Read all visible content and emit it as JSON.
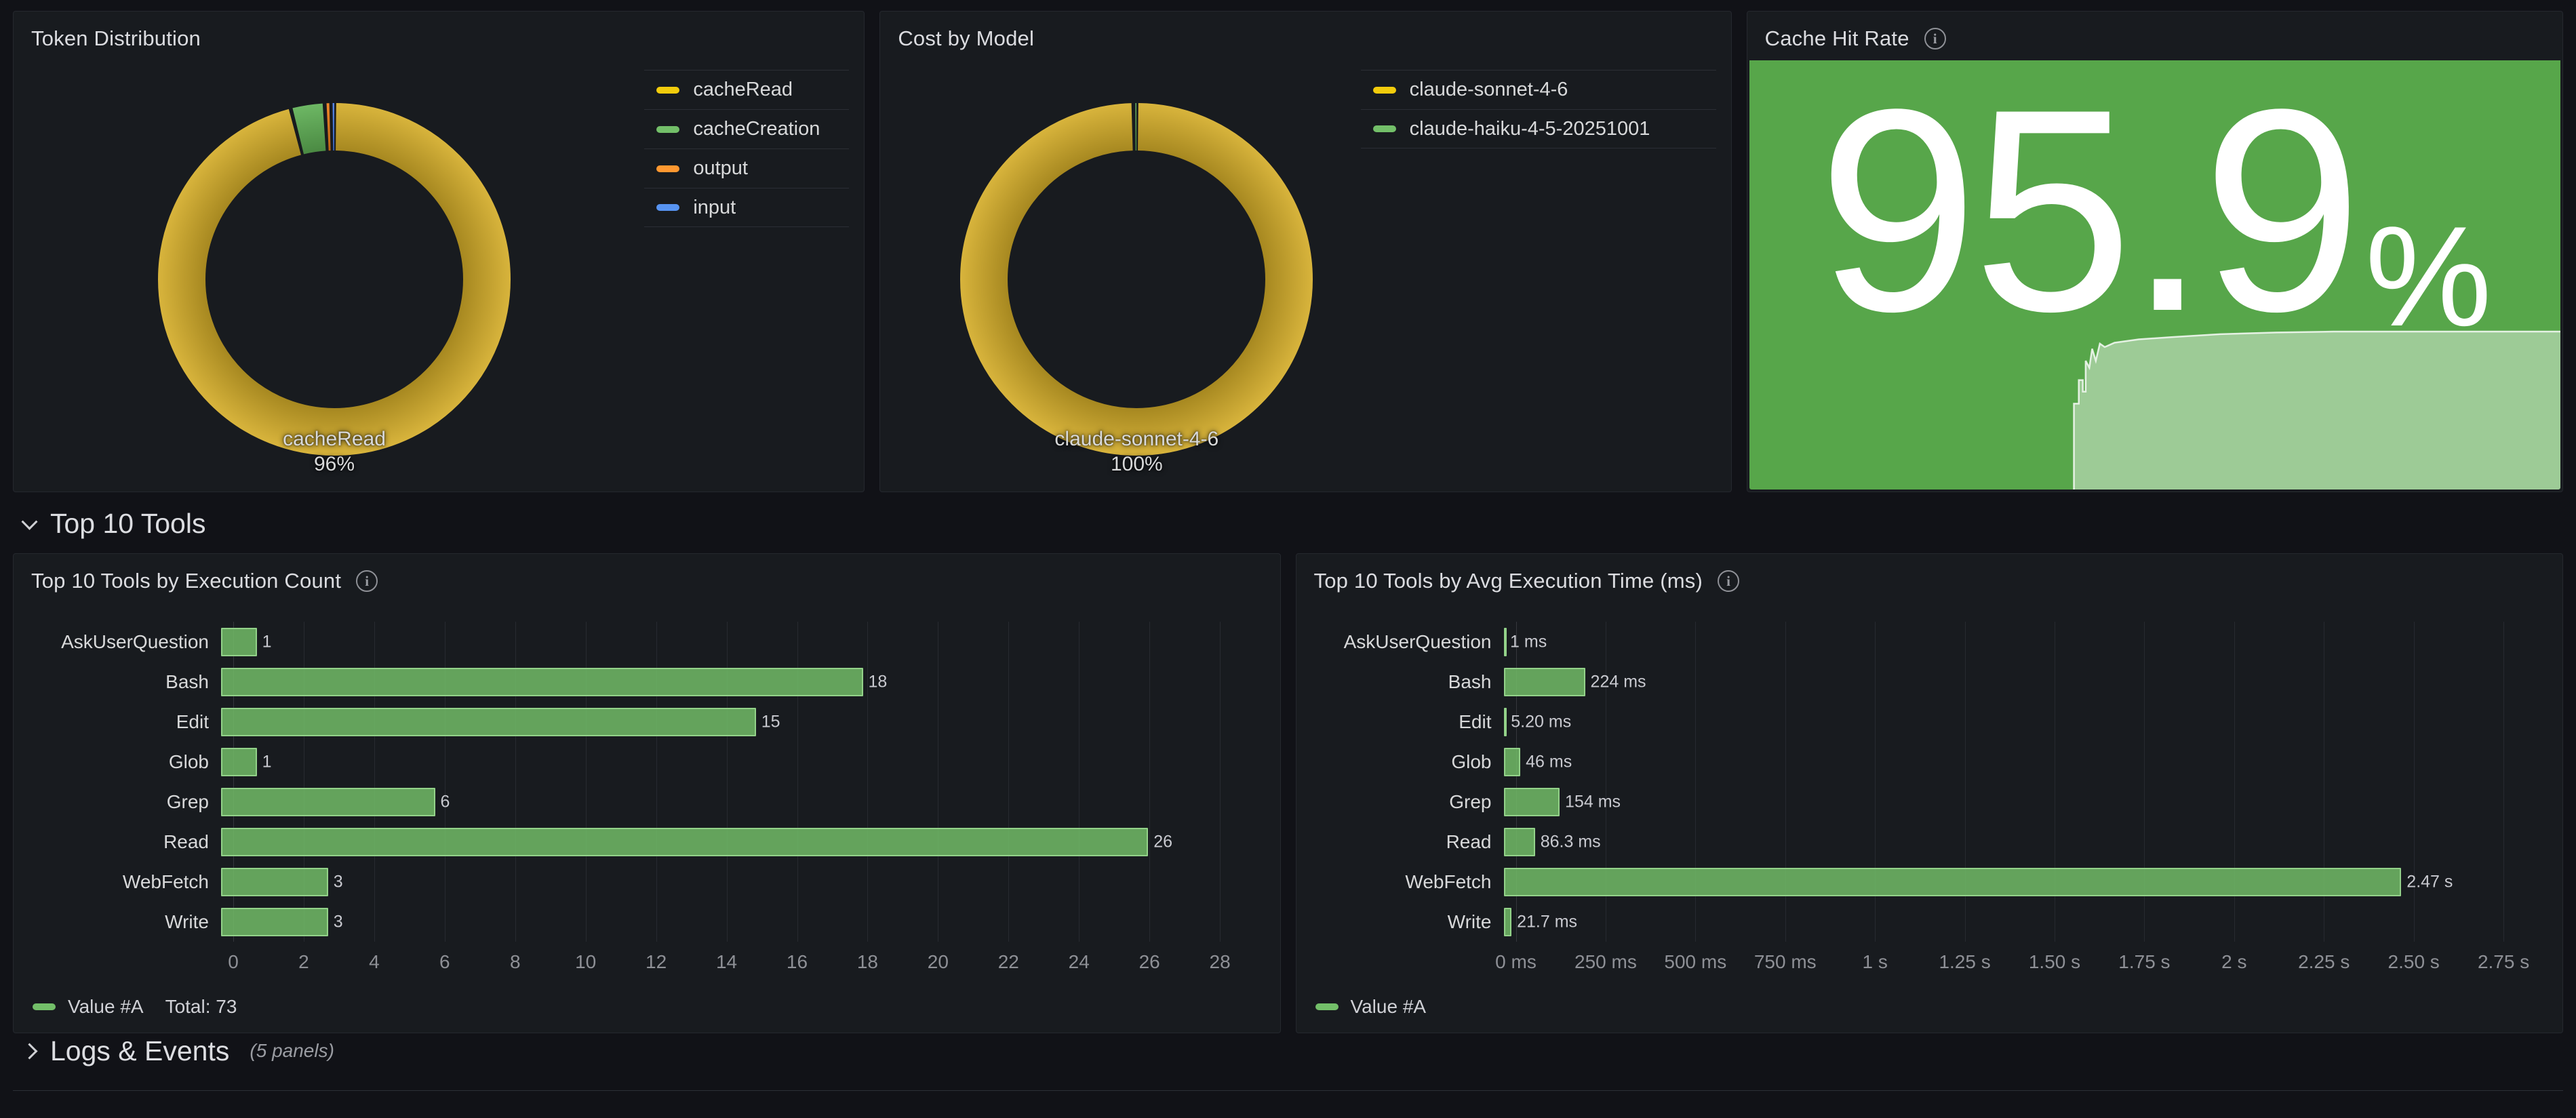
{
  "rows": {
    "top10": {
      "label": "Top 10 Tools",
      "state": "expanded"
    },
    "logs": {
      "label": "Logs & Events",
      "note": "(5 panels)",
      "state": "collapsed"
    }
  },
  "colors": {
    "bar_green": "#73BF69",
    "stat_background": "#57A64A",
    "page_background": "#111217",
    "panel_background": "#181b1f"
  },
  "chart_data": [
    {
      "type": "pie",
      "title": "Token Distribution",
      "labels": [
        "cacheRead",
        "cacheCreation",
        "output",
        "input"
      ],
      "values": [
        96,
        3.1,
        0.55,
        0.35
      ],
      "slice_colors": [
        "#D4AC26",
        "#5DAF53",
        "#EE7D12",
        "#4479E3"
      ],
      "swatch_colors": [
        "#F2CC0C",
        "#73BF69",
        "#FF9830",
        "#5794F2"
      ],
      "callout": {
        "name": "cacheRead",
        "pct": "96%"
      },
      "legend_position": "right"
    },
    {
      "type": "pie",
      "title": "Cost by Model",
      "labels": [
        "claude-sonnet-4-6",
        "claude-haiku-4-5-20251001"
      ],
      "values": [
        99.7,
        0.3
      ],
      "slice_colors": [
        "#D4AC26",
        "#5DAF53"
      ],
      "swatch_colors": [
        "#F2CC0C",
        "#73BF69"
      ],
      "callout": {
        "name": "claude-sonnet-4-6",
        "pct": "100%"
      },
      "legend_position": "right"
    },
    {
      "type": "stat",
      "title": "Cache Hit Rate",
      "value": "95.9",
      "unit": "%",
      "background": "#57A64A",
      "sparkline": [
        [
          0.4,
          1.0
        ],
        [
          0.4,
          0.8
        ],
        [
          0.406,
          0.8
        ],
        [
          0.406,
          0.745
        ],
        [
          0.411,
          0.745
        ],
        [
          0.411,
          0.772
        ],
        [
          0.4145,
          0.772
        ],
        [
          0.4145,
          0.7
        ],
        [
          0.419,
          0.716
        ],
        [
          0.4225,
          0.672
        ],
        [
          0.427,
          0.7
        ],
        [
          0.432,
          0.66
        ],
        [
          0.438,
          0.668
        ],
        [
          0.45,
          0.658
        ],
        [
          0.48,
          0.65
        ],
        [
          0.52,
          0.645
        ],
        [
          0.58,
          0.638
        ],
        [
          0.65,
          0.634
        ],
        [
          0.72,
          0.632
        ],
        [
          1.0,
          0.632
        ],
        [
          1.0,
          1.0
        ]
      ]
    },
    {
      "type": "bar",
      "orientation": "horizontal",
      "title": "Top 10 Tools by Execution Count",
      "categories": [
        "AskUserQuestion",
        "Bash",
        "Edit",
        "Glob",
        "Grep",
        "Read",
        "WebFetch",
        "Write"
      ],
      "values": [
        1,
        18,
        15,
        1,
        6,
        26,
        3,
        3
      ],
      "value_labels": [
        "1",
        "18",
        "15",
        "1",
        "6",
        "26",
        "3",
        "3"
      ],
      "xticks": {
        "values": [
          0,
          2,
          4,
          6,
          8,
          10,
          12,
          14,
          16,
          18,
          20,
          22,
          24,
          26,
          28
        ],
        "labels": [
          "0",
          "2",
          "4",
          "6",
          "8",
          "10",
          "12",
          "14",
          "16",
          "18",
          "20",
          "22",
          "24",
          "26",
          "28"
        ]
      },
      "xmax": 29.2,
      "legend": {
        "series": "Value #A",
        "total": "Total: 73"
      },
      "color": "#73BF69"
    },
    {
      "type": "bar",
      "orientation": "horizontal",
      "title": "Top 10 Tools by Avg Execution Time (ms)",
      "categories": [
        "AskUserQuestion",
        "Bash",
        "Edit",
        "Glob",
        "Grep",
        "Read",
        "WebFetch",
        "Write"
      ],
      "values": [
        1,
        224,
        5.2,
        46,
        154,
        86.3,
        2470,
        21.7
      ],
      "value_labels": [
        "1 ms",
        "224 ms",
        "5.20 ms",
        "46 ms",
        "154 ms",
        "86.3 ms",
        "2.47 s",
        "21.7 ms"
      ],
      "xticks": {
        "values": [
          0,
          250,
          500,
          750,
          1000,
          1250,
          1500,
          1750,
          2000,
          2250,
          2500,
          2750
        ],
        "labels": [
          "0 ms",
          "250 ms",
          "500 ms",
          "750 ms",
          "1 s",
          "1.25 s",
          "1.50 s",
          "1.75 s",
          "2 s",
          "2.25 s",
          "2.50 s",
          "2.75 s"
        ]
      },
      "xmax": 2865,
      "legend": {
        "series": "Value #A"
      },
      "color": "#73BF69"
    }
  ]
}
